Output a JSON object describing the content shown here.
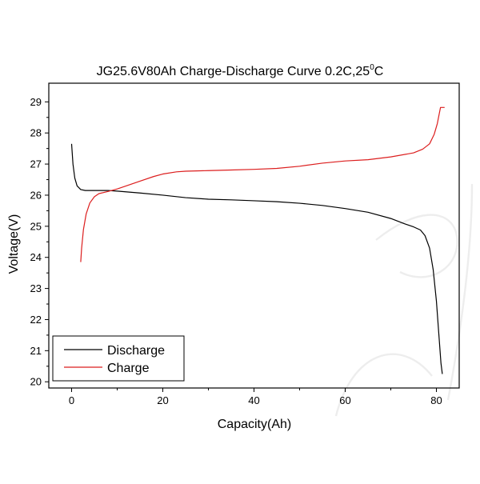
{
  "chart_data": {
    "type": "line",
    "title": "JG25.6V80Ah Charge-Discharge Curve  0.2C,25",
    "title_superscript": "0",
    "title_suffix": "C",
    "xlabel": "Capacity(Ah)",
    "ylabel": "Voltage(V)",
    "xlim": [
      -5,
      85
    ],
    "ylim": [
      19.8,
      29.6
    ],
    "x_ticks": [
      0,
      20,
      40,
      60,
      80
    ],
    "y_ticks": [
      20,
      21,
      22,
      23,
      24,
      25,
      26,
      27,
      28,
      29
    ],
    "grid": false,
    "legend_position": "bottom-left",
    "series": [
      {
        "name": "Discharge",
        "color": "#000000",
        "points": [
          [
            0,
            27.65
          ],
          [
            0.3,
            27.0
          ],
          [
            0.7,
            26.55
          ],
          [
            1.2,
            26.3
          ],
          [
            2,
            26.18
          ],
          [
            3,
            26.15
          ],
          [
            5,
            26.15
          ],
          [
            8,
            26.15
          ],
          [
            10,
            26.13
          ],
          [
            15,
            26.07
          ],
          [
            20,
            26.0
          ],
          [
            25,
            25.92
          ],
          [
            30,
            25.87
          ],
          [
            35,
            25.85
          ],
          [
            40,
            25.82
          ],
          [
            45,
            25.79
          ],
          [
            50,
            25.74
          ],
          [
            55,
            25.67
          ],
          [
            60,
            25.57
          ],
          [
            65,
            25.45
          ],
          [
            70,
            25.25
          ],
          [
            73,
            25.08
          ],
          [
            75,
            24.98
          ],
          [
            76.5,
            24.88
          ],
          [
            77.5,
            24.7
          ],
          [
            78.5,
            24.3
          ],
          [
            79.3,
            23.6
          ],
          [
            80,
            22.6
          ],
          [
            80.5,
            21.6
          ],
          [
            81,
            20.6
          ],
          [
            81.3,
            20.25
          ]
        ]
      },
      {
        "name": "Charge",
        "color": "#dc1e1e",
        "points": [
          [
            2,
            23.85
          ],
          [
            2.2,
            24.3
          ],
          [
            2.6,
            24.9
          ],
          [
            3.2,
            25.4
          ],
          [
            4,
            25.75
          ],
          [
            5,
            25.95
          ],
          [
            6,
            26.05
          ],
          [
            8,
            26.12
          ],
          [
            10,
            26.2
          ],
          [
            12,
            26.3
          ],
          [
            15,
            26.45
          ],
          [
            18,
            26.6
          ],
          [
            20,
            26.68
          ],
          [
            23,
            26.75
          ],
          [
            25,
            26.77
          ],
          [
            30,
            26.79
          ],
          [
            35,
            26.81
          ],
          [
            40,
            26.83
          ],
          [
            45,
            26.86
          ],
          [
            50,
            26.93
          ],
          [
            55,
            27.03
          ],
          [
            60,
            27.1
          ],
          [
            65,
            27.14
          ],
          [
            70,
            27.23
          ],
          [
            75,
            27.36
          ],
          [
            77,
            27.48
          ],
          [
            78.5,
            27.65
          ],
          [
            79.5,
            27.95
          ],
          [
            80.2,
            28.3
          ],
          [
            80.6,
            28.6
          ],
          [
            80.9,
            28.82
          ],
          [
            81.8,
            28.82
          ]
        ]
      }
    ]
  }
}
